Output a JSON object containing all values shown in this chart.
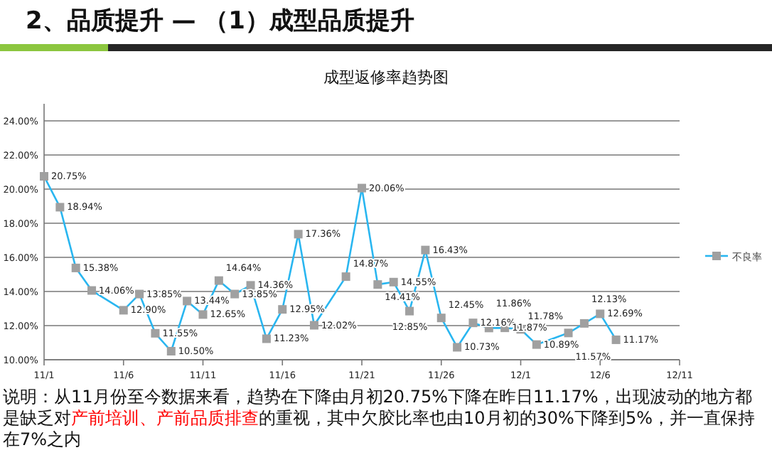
{
  "chart_data": {
    "type": "line",
    "title": "2、品质提升 — （1）成型品质提升",
    "subtitle": "成型返修率趋势图",
    "x": [
      "--11-01",
      "--11-02",
      "--11-03",
      "--11-04",
      "--11-06",
      "--11-07",
      "--11-08",
      "--11-09",
      "--11-10",
      "--11-11",
      "--11-12",
      "--11-13",
      "--11-14",
      "--11-15",
      "--11-16",
      "--11-17",
      "--11-18",
      "--11-20",
      "--11-21",
      "--11-22",
      "--11-23",
      "--11-24",
      "--11-25",
      "--11-26",
      "--11-27",
      "--11-28",
      "--11-29",
      "--11-30",
      "--12-01",
      "--12-02",
      "--12-04",
      "--12-05",
      "--12-06",
      "--12-07"
    ],
    "series": [
      {
        "name": "不良率",
        "color": "#29b6f0",
        "values": [
          20.75,
          18.94,
          15.38,
          14.06,
          12.9,
          13.85,
          11.55,
          10.5,
          13.44,
          12.65,
          14.64,
          13.85,
          14.36,
          11.23,
          12.95,
          17.36,
          12.02,
          14.87,
          20.06,
          14.41,
          14.55,
          12.85,
          16.43,
          12.45,
          10.73,
          12.16,
          11.86,
          11.87,
          11.78,
          10.89,
          11.57,
          12.13,
          12.69,
          11.17
        ],
        "value_labels": [
          "20.75%",
          "18.94%",
          "15.38%",
          "14.06%",
          "12.90%",
          "13.85%",
          "11.55%",
          "10.50%",
          "13.44%",
          "12.65%",
          "14.64%",
          "13.85%",
          "14.36%",
          "11.23%",
          "12.95%",
          "17.36%",
          "12.02%",
          "14.87%",
          "20.06%",
          "14.41%",
          "14.55%",
          "12.85%",
          "16.43%",
          "12.45%",
          "10.73%",
          "12.16%",
          "11.86%",
          "11.87%",
          "11.78%",
          "10.89%",
          "11.57%",
          "12.13%",
          "12.69%",
          "11.17%"
        ]
      }
    ],
    "xlim": [
      "--11-01",
      "--12-11"
    ],
    "xticks": [
      {
        "value": "--11-01",
        "label": "11/1"
      },
      {
        "value": "--11-06",
        "label": "11/6"
      },
      {
        "value": "--11-11",
        "label": "11/11"
      },
      {
        "value": "--11-16",
        "label": "11/16"
      },
      {
        "value": "--11-21",
        "label": "11/21"
      },
      {
        "value": "--11-26",
        "label": "11/26"
      },
      {
        "value": "--12-01",
        "label": "12/1"
      },
      {
        "value": "--12-06",
        "label": "12/6"
      },
      {
        "value": "--12-11",
        "label": "12/11"
      }
    ],
    "ylim": [
      10,
      24
    ],
    "yticks": [
      {
        "value": 10,
        "label": "10.00%"
      },
      {
        "value": 12,
        "label": "12.00%"
      },
      {
        "value": 14,
        "label": "14.00%"
      },
      {
        "value": 16,
        "label": "16.00%"
      },
      {
        "value": 18,
        "label": "18.00%"
      },
      {
        "value": 20,
        "label": "20.00%"
      },
      {
        "value": 22,
        "label": "22.00%"
      },
      {
        "value": 24,
        "label": "24.00%"
      }
    ],
    "grid": "y",
    "legend": "right",
    "marker": "square",
    "line_style": "solid",
    "annotations": [
      "说明：从11月份至今数据来看，趋势在下降由月初20.75%下降在昨日11.17%，出现波动的地方都是缺乏对",
      "产前培训、产前品质排查",
      "的重视，其中欠胶比率也由10月初的30%下降到5%，并一直保持在7%之内"
    ]
  }
}
